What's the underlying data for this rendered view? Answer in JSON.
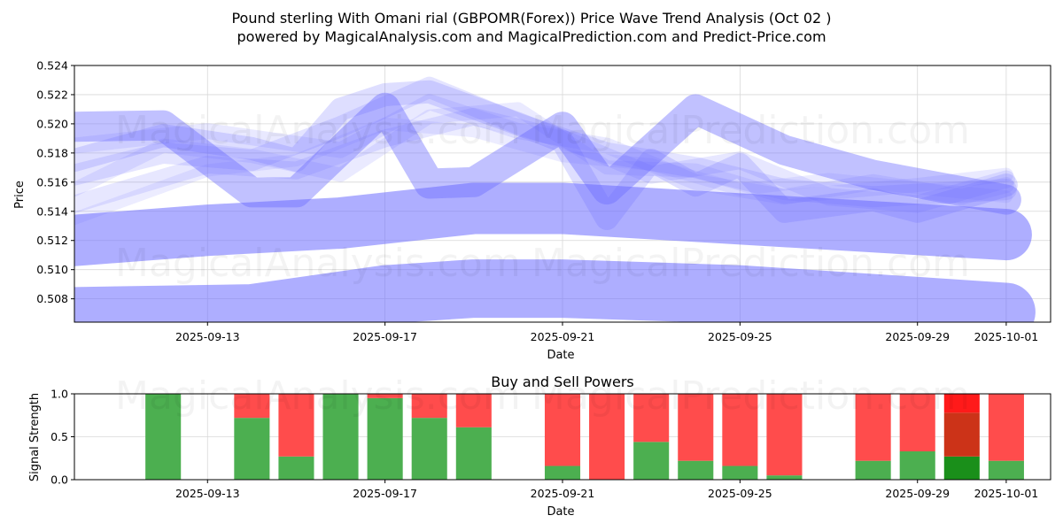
{
  "chart_data": [
    {
      "type": "line",
      "title": "Pound sterling With Omani rial (GBPOMR(Forex)) Price Wave Trend Analysis (Oct 02 )",
      "subtitle": "powered by MagicalAnalysis.com and MagicalPrediction.com and Predict-Price.com",
      "xlabel": "Date",
      "ylabel": "Price",
      "x_range": [
        "2025-09-10",
        "2025-10-02"
      ],
      "ylim": [
        0.5064,
        0.524
      ],
      "y_ticks": [
        0.508,
        0.51,
        0.512,
        0.514,
        0.516,
        0.518,
        0.52,
        0.522,
        0.524
      ],
      "y_tick_labels": [
        "0.508",
        "0.510",
        "0.512",
        "0.514",
        "0.516",
        "0.518",
        "0.520",
        "0.522",
        "0.524"
      ],
      "x_ticks": [
        "2025-09-13",
        "2025-09-17",
        "2025-09-21",
        "2025-09-25",
        "2025-09-29",
        "2025-10-01"
      ],
      "grid": true,
      "band_color": "#6b6bff",
      "series": [
        {
          "name": "wave-1",
          "x": [
            "2025-09-10",
            "2025-09-12",
            "2025-09-14",
            "2025-09-15",
            "2025-09-17",
            "2025-09-18",
            "2025-09-19",
            "2025-09-21",
            "2025-09-22",
            "2025-09-24",
            "2025-09-26",
            "2025-09-28",
            "2025-10-01"
          ],
          "values": [
            0.5198,
            0.5199,
            0.5153,
            0.5153,
            0.5211,
            0.5159,
            0.516,
            0.5198,
            0.5155,
            0.521,
            0.5182,
            0.5165,
            0.5148
          ]
        },
        {
          "name": "wave-2",
          "x": [
            "2025-09-10",
            "2025-09-13",
            "2025-09-16",
            "2025-09-19",
            "2025-09-21",
            "2025-10-01"
          ],
          "values": [
            0.512,
            0.5127,
            0.5132,
            0.5142,
            0.5142,
            0.5124
          ]
        },
        {
          "name": "wave-3",
          "x": [
            "2025-09-10",
            "2025-09-14",
            "2025-09-17",
            "2025-09-19",
            "2025-09-21",
            "2025-09-25",
            "2025-10-01"
          ],
          "values": [
            0.5068,
            0.507,
            0.5083,
            0.5087,
            0.5087,
            0.5083,
            0.5071
          ]
        },
        {
          "name": "wave-4",
          "x": [
            "2025-09-10",
            "2025-09-12",
            "2025-09-14",
            "2025-09-15",
            "2025-09-16",
            "2025-09-17",
            "2025-09-18",
            "2025-09-20",
            "2025-09-21",
            "2025-09-22",
            "2025-09-23",
            "2025-09-24",
            "2025-09-25",
            "2025-09-26",
            "2025-09-28",
            "2025-09-29",
            "2025-10-01"
          ],
          "values": [
            0.5175,
            0.5192,
            0.5183,
            0.5175,
            0.521,
            0.522,
            0.5222,
            0.52,
            0.5188,
            0.5135,
            0.5175,
            0.5158,
            0.5172,
            0.514,
            0.5148,
            0.514,
            0.5158
          ]
        },
        {
          "name": "wave-5",
          "x": [
            "2025-09-10",
            "2025-09-12",
            "2025-09-14",
            "2025-09-16",
            "2025-09-18",
            "2025-09-20",
            "2025-09-22",
            "2025-09-24",
            "2025-09-26",
            "2025-09-28",
            "2025-10-01"
          ],
          "values": [
            0.5165,
            0.518,
            0.5175,
            0.5198,
            0.5225,
            0.52,
            0.518,
            0.517,
            0.5155,
            0.515,
            0.5155
          ]
        },
        {
          "name": "wave-6",
          "x": [
            "2025-09-10",
            "2025-09-13",
            "2025-09-15",
            "2025-09-17",
            "2025-09-19",
            "2025-09-21",
            "2025-09-23",
            "2025-09-25",
            "2025-09-27",
            "2025-09-29",
            "2025-10-01"
          ],
          "values": [
            0.5145,
            0.5172,
            0.5168,
            0.519,
            0.5205,
            0.519,
            0.5165,
            0.5175,
            0.515,
            0.5145,
            0.5162
          ]
        },
        {
          "name": "wave-7",
          "x": [
            "2025-09-10",
            "2025-09-13",
            "2025-09-16",
            "2025-09-18",
            "2025-09-20",
            "2025-09-22",
            "2025-09-24",
            "2025-09-26",
            "2025-09-28",
            "2025-09-30",
            "2025-10-01"
          ],
          "values": [
            0.5185,
            0.5195,
            0.5182,
            0.5215,
            0.5195,
            0.5185,
            0.516,
            0.515,
            0.516,
            0.515,
            0.5158
          ]
        },
        {
          "name": "wave-8",
          "x": [
            "2025-09-10",
            "2025-09-12",
            "2025-09-14",
            "2025-09-16",
            "2025-09-18",
            "2025-09-20",
            "2025-09-22",
            "2025-09-24",
            "2025-09-26",
            "2025-09-29",
            "2025-10-01"
          ],
          "values": [
            0.5155,
            0.5185,
            0.5178,
            0.5165,
            0.5205,
            0.521,
            0.517,
            0.5168,
            0.515,
            0.5158,
            0.5165
          ]
        },
        {
          "name": "wave-9",
          "x": [
            "2025-09-10",
            "2025-09-13",
            "2025-09-15",
            "2025-09-17",
            "2025-09-19",
            "2025-09-21",
            "2025-09-23",
            "2025-09-25",
            "2025-09-27",
            "2025-10-01"
          ],
          "values": [
            0.5135,
            0.5168,
            0.5175,
            0.52,
            0.5195,
            0.5178,
            0.5172,
            0.5155,
            0.5162,
            0.515
          ]
        }
      ]
    },
    {
      "type": "bar",
      "title": "Buy and Sell Powers",
      "xlabel": "Date",
      "ylabel": "Signal Strength",
      "ylim": [
        0,
        1.0
      ],
      "y_ticks": [
        0.0,
        0.5,
        1.0
      ],
      "y_tick_labels": [
        "0.0",
        "0.5",
        "1.0"
      ],
      "x_range": [
        "2025-09-10",
        "2025-10-02"
      ],
      "x_ticks": [
        "2025-09-13",
        "2025-09-17",
        "2025-09-21",
        "2025-09-25",
        "2025-09-29",
        "2025-10-01"
      ],
      "grid": true,
      "colors": {
        "buy": "#4caf50",
        "sell": "#ff4c4c",
        "strong_buy": "#1a8f1a",
        "mid": "#cc3318",
        "strong_sell": "#ff1a1a"
      },
      "bars": [
        {
          "date": "2025-09-12",
          "buy": 1.0,
          "sell": 0.0
        },
        {
          "date": "2025-09-14",
          "buy": 0.72,
          "sell": 0.28
        },
        {
          "date": "2025-09-15",
          "buy": 0.27,
          "sell": 0.73
        },
        {
          "date": "2025-09-16",
          "buy": 1.0,
          "sell": 0.0
        },
        {
          "date": "2025-09-17",
          "buy": 0.95,
          "sell": 0.05
        },
        {
          "date": "2025-09-18",
          "buy": 0.72,
          "sell": 0.28
        },
        {
          "date": "2025-09-19",
          "buy": 0.61,
          "sell": 0.39
        },
        {
          "date": "2025-09-21",
          "buy": 0.16,
          "sell": 0.84
        },
        {
          "date": "2025-09-22",
          "buy": 0.0,
          "sell": 1.0
        },
        {
          "date": "2025-09-23",
          "buy": 0.44,
          "sell": 0.56
        },
        {
          "date": "2025-09-24",
          "buy": 0.22,
          "sell": 0.78
        },
        {
          "date": "2025-09-25",
          "buy": 0.16,
          "sell": 0.84
        },
        {
          "date": "2025-09-26",
          "buy": 0.05,
          "sell": 0.95
        },
        {
          "date": "2025-09-28",
          "buy": 0.22,
          "sell": 0.78
        },
        {
          "date": "2025-09-29",
          "buy": 0.33,
          "sell": 0.67
        },
        {
          "date": "2025-09-30",
          "buy": 0.27,
          "sell": 0.73,
          "mid": 0.51,
          "strong": true
        },
        {
          "date": "2025-10-01",
          "buy": 0.22,
          "sell": 0.78
        }
      ]
    }
  ],
  "watermarks": [
    "MagicalAnalysis.com",
    "MagicalPrediction.com"
  ]
}
